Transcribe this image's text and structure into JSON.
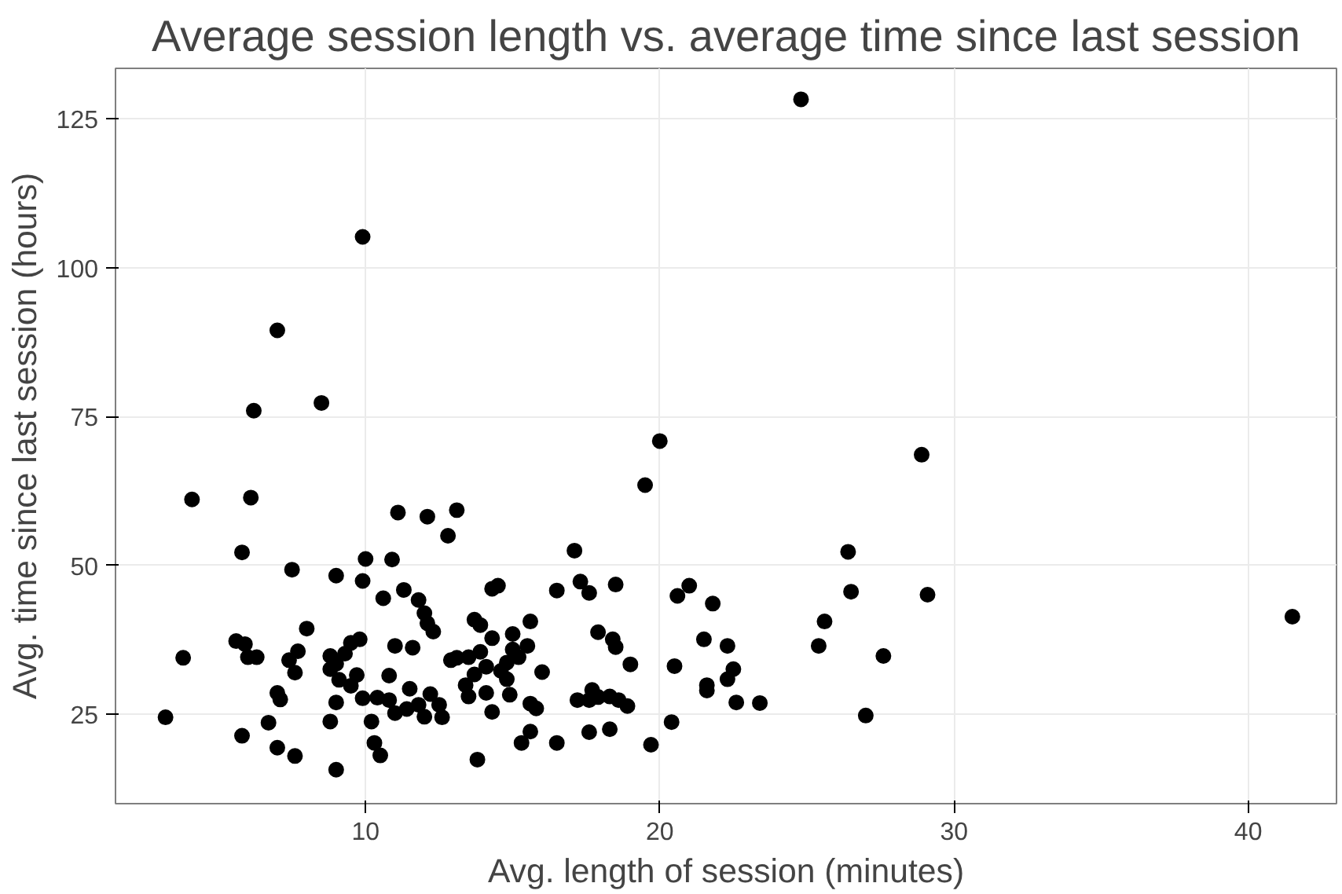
{
  "chart_data": {
    "type": "scatter",
    "title": "Average session length vs. average time since last session",
    "xlabel": "Avg. length of session (minutes)",
    "ylabel": "Avg. time since last session (hours)",
    "xlim": [
      1.5,
      43
    ],
    "ylim": [
      10,
      133.5
    ],
    "xticks": [
      10,
      20,
      30,
      40
    ],
    "yticks": [
      25,
      50,
      75,
      100,
      125
    ],
    "grid": true,
    "marker": "circle",
    "series": [
      {
        "color": "#000000",
        "x": [
          24.8,
          9.9,
          7.0,
          8.5,
          6.2,
          20.0,
          28.9,
          19.5,
          4.1,
          6.1,
          11.1,
          12.1,
          13.1,
          12.8,
          17.1,
          26.4,
          5.8,
          10.0,
          10.9,
          7.5,
          9.0,
          9.9,
          11.3,
          10.6,
          11.8,
          12.0,
          13.7,
          13.9,
          14.3,
          14.5,
          15.0,
          15.6,
          16.5,
          17.3,
          17.6,
          18.5,
          20.6,
          21.0,
          21.8,
          26.5,
          29.1,
          41.5,
          25.6,
          25.4,
          27.6,
          27.0,
          23.4,
          22.6,
          22.3,
          22.5,
          22.3,
          21.5,
          21.6,
          21.6,
          20.5,
          20.4,
          19.7,
          19.0,
          18.5,
          18.4,
          17.9,
          18.3,
          18.6,
          18.9,
          18.3,
          17.9,
          17.6,
          17.7,
          17.2,
          17.6,
          16.5,
          15.6,
          15.8,
          15.6,
          15.3,
          16.0,
          15.5,
          15.2,
          14.8,
          14.6,
          14.8,
          15.0,
          14.3,
          14.1,
          13.9,
          13.7,
          13.5,
          13.4,
          13.5,
          14.1,
          14.3,
          14.9,
          13.8,
          13.1,
          12.9,
          12.5,
          12.6,
          12.2,
          12.0,
          11.8,
          11.5,
          11.4,
          11.0,
          11.0,
          11.6,
          10.8,
          10.4,
          10.2,
          10.3,
          10.5,
          9.9,
          9.5,
          9.7,
          9.8,
          9.5,
          9.3,
          9.0,
          8.8,
          8.8,
          9.1,
          9.0,
          8.8,
          9.0,
          8.0,
          7.7,
          7.4,
          7.6,
          7.0,
          7.1,
          6.7,
          7.0,
          7.6,
          6.3,
          6.0,
          5.9,
          5.6,
          5.8,
          3.8,
          3.2,
          10.8,
          12.3,
          12.1
        ],
        "values": [
          128.3,
          105.2,
          89.5,
          77.3,
          76.0,
          70.9,
          68.6,
          63.5,
          61.1,
          61.4,
          58.9,
          58.2,
          59.3,
          55.0,
          52.5,
          52.3,
          52.2,
          51.1,
          51.0,
          49.3,
          48.3,
          47.4,
          45.9,
          44.5,
          44.2,
          42.0,
          40.9,
          40.0,
          46.1,
          46.6,
          38.5,
          40.6,
          45.8,
          47.3,
          45.4,
          46.8,
          44.9,
          46.6,
          43.6,
          45.6,
          45.1,
          41.4,
          40.6,
          36.5,
          34.8,
          24.8,
          26.9,
          27.0,
          36.5,
          32.6,
          30.9,
          37.6,
          29.9,
          29.0,
          33.1,
          23.7,
          19.9,
          33.4,
          36.3,
          37.6,
          38.8,
          28.0,
          27.4,
          26.4,
          22.5,
          27.9,
          27.4,
          29.1,
          27.4,
          22.0,
          20.2,
          22.1,
          26.0,
          26.8,
          20.2,
          32.1,
          36.5,
          34.6,
          30.9,
          32.3,
          33.7,
          35.9,
          37.8,
          33.0,
          35.5,
          31.7,
          34.6,
          29.9,
          28.0,
          28.6,
          25.4,
          28.3,
          17.4,
          34.5,
          34.1,
          26.6,
          24.5,
          28.4,
          24.6,
          26.6,
          29.3,
          25.9,
          25.2,
          36.5,
          36.2,
          27.4,
          27.8,
          23.8,
          20.2,
          18.1,
          27.7,
          29.8,
          31.6,
          37.6,
          37.0,
          35.2,
          33.5,
          34.8,
          32.6,
          30.8,
          27.0,
          23.8,
          15.7,
          39.4,
          35.6,
          34.1,
          32.0,
          28.6,
          27.5,
          23.6,
          19.4,
          18.0,
          34.6,
          34.6,
          36.8,
          37.3,
          21.4,
          34.5,
          24.5,
          31.5,
          38.9,
          40.3
        ]
      }
    ]
  }
}
